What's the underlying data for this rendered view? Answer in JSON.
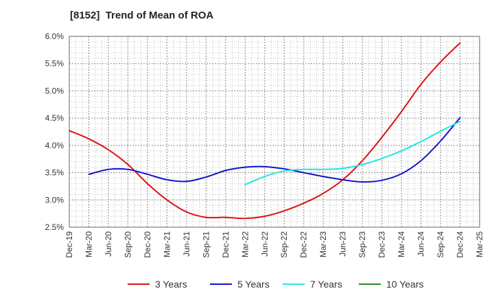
{
  "chart_data": {
    "type": "line",
    "title": "[8152]  Trend of Mean of ROA",
    "xlabel": "",
    "ylabel": "",
    "x_ticks": [
      "Dec-19",
      "Mar-20",
      "Jun-20",
      "Sep-20",
      "Dec-20",
      "Mar-21",
      "Jun-21",
      "Sep-21",
      "Dec-21",
      "Mar-22",
      "Jun-22",
      "Sep-22",
      "Dec-22",
      "Mar-23",
      "Jun-23",
      "Sep-23",
      "Dec-23",
      "Mar-24",
      "Jun-24",
      "Sep-24",
      "Dec-24",
      "Mar-25"
    ],
    "y_ticks": [
      "2.5%",
      "3.0%",
      "3.5%",
      "4.0%",
      "4.5%",
      "5.0%",
      "5.5%",
      "6.0%"
    ],
    "ylim": [
      2.5,
      6.0
    ],
    "grid": true,
    "legend_position": "bottom",
    "series": [
      {
        "name": "3 Years",
        "color": "#dd1111",
        "x": [
          "Dec-19",
          "Mar-20",
          "Jun-20",
          "Sep-20",
          "Dec-20",
          "Mar-21",
          "Jun-21",
          "Sep-21",
          "Dec-21",
          "Mar-22",
          "Jun-22",
          "Sep-22",
          "Dec-22",
          "Mar-23",
          "Jun-23",
          "Sep-23",
          "Dec-23",
          "Mar-24",
          "Jun-24",
          "Sep-24",
          "Dec-24"
        ],
        "values": [
          4.27,
          4.12,
          3.92,
          3.65,
          3.3,
          3.0,
          2.78,
          2.68,
          2.68,
          2.66,
          2.7,
          2.8,
          2.94,
          3.12,
          3.37,
          3.72,
          4.15,
          4.62,
          5.12,
          5.53,
          5.88
        ]
      },
      {
        "name": "5 Years",
        "color": "#1111cc",
        "x": [
          "Mar-20",
          "Jun-20",
          "Sep-20",
          "Dec-20",
          "Mar-21",
          "Jun-21",
          "Sep-21",
          "Dec-21",
          "Mar-22",
          "Jun-22",
          "Sep-22",
          "Dec-22",
          "Mar-23",
          "Jun-23",
          "Sep-23",
          "Dec-23",
          "Mar-24",
          "Jun-24",
          "Sep-24",
          "Dec-24"
        ],
        "values": [
          3.47,
          3.56,
          3.56,
          3.47,
          3.37,
          3.34,
          3.42,
          3.54,
          3.6,
          3.61,
          3.57,
          3.5,
          3.43,
          3.37,
          3.33,
          3.36,
          3.48,
          3.72,
          4.08,
          4.51
        ]
      },
      {
        "name": "7 Years",
        "color": "#22e5e5",
        "x": [
          "Mar-22",
          "Jun-22",
          "Sep-22",
          "Dec-22",
          "Mar-23",
          "Jun-23",
          "Sep-23",
          "Dec-23",
          "Mar-24",
          "Jun-24",
          "Sep-24",
          "Dec-24"
        ],
        "values": [
          3.28,
          3.43,
          3.53,
          3.56,
          3.56,
          3.58,
          3.65,
          3.76,
          3.9,
          4.07,
          4.26,
          4.44
        ]
      },
      {
        "name": "10 Years",
        "color": "#228b22",
        "x": [],
        "values": []
      }
    ]
  }
}
